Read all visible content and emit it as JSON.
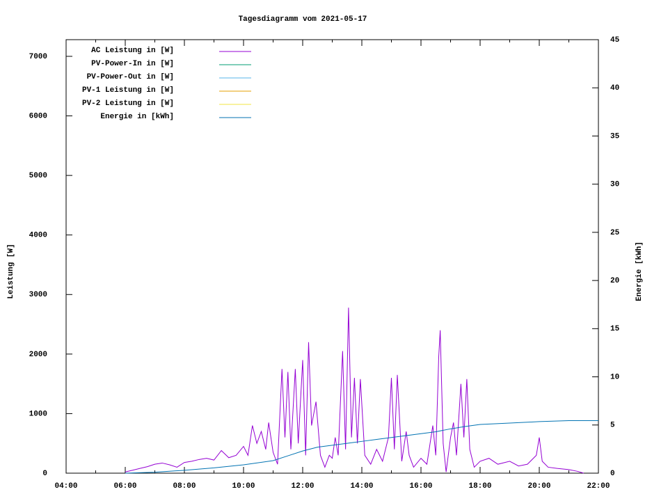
{
  "chart_data": {
    "type": "line",
    "title": "Tagesdiagramm vom 2021-05-17",
    "ylabel": "Leistung [W]",
    "y2label": "Energie [kWh]",
    "xlim": [
      4,
      22
    ],
    "xticks": [
      {
        "value": 4,
        "label": "04:00"
      },
      {
        "value": 6,
        "label": "06:00"
      },
      {
        "value": 8,
        "label": "08:00"
      },
      {
        "value": 10,
        "label": "10:00"
      },
      {
        "value": 12,
        "label": "12:00"
      },
      {
        "value": 14,
        "label": "14:00"
      },
      {
        "value": 16,
        "label": "16:00"
      },
      {
        "value": 18,
        "label": "18:00"
      },
      {
        "value": 20,
        "label": "20:00"
      },
      {
        "value": 22,
        "label": "22:00"
      }
    ],
    "ylim": [
      0,
      7280
    ],
    "yticks": [
      0,
      1000,
      2000,
      3000,
      4000,
      5000,
      6000,
      7000
    ],
    "y2lim": [
      0,
      45
    ],
    "y2ticks": [
      0,
      5,
      10,
      15,
      20,
      25,
      30,
      35,
      40,
      45
    ],
    "legend": "top-left",
    "series": [
      {
        "name": "AC Leistung in [W]",
        "color": "#9400d3",
        "x": [
          6.0,
          6.25,
          6.5,
          6.75,
          7.0,
          7.25,
          7.5,
          7.75,
          8.0,
          8.25,
          8.5,
          8.75,
          9.0,
          9.25,
          9.5,
          9.75,
          10.0,
          10.15,
          10.3,
          10.45,
          10.6,
          10.75,
          10.85,
          11.0,
          11.15,
          11.3,
          11.4,
          11.5,
          11.6,
          11.75,
          11.85,
          12.0,
          12.1,
          12.2,
          12.3,
          12.45,
          12.6,
          12.75,
          12.9,
          13.0,
          13.1,
          13.2,
          13.35,
          13.45,
          13.55,
          13.65,
          13.75,
          13.85,
          13.95,
          14.1,
          14.3,
          14.5,
          14.7,
          14.9,
          15.0,
          15.1,
          15.2,
          15.35,
          15.5,
          15.6,
          15.75,
          16.0,
          16.2,
          16.4,
          16.5,
          16.6,
          16.65,
          16.75,
          16.85,
          17.0,
          17.1,
          17.2,
          17.35,
          17.45,
          17.55,
          17.65,
          17.8,
          18.0,
          18.3,
          18.6,
          19.0,
          19.3,
          19.6,
          19.9,
          20.0,
          20.1,
          20.3,
          20.6,
          21.0,
          21.3,
          21.5
        ],
        "values": [
          20,
          50,
          80,
          110,
          150,
          170,
          140,
          100,
          180,
          200,
          230,
          250,
          220,
          380,
          260,
          300,
          450,
          300,
          800,
          500,
          700,
          400,
          850,
          350,
          150,
          1750,
          600,
          1700,
          400,
          1750,
          500,
          1900,
          300,
          2200,
          800,
          1200,
          300,
          100,
          300,
          250,
          600,
          300,
          2050,
          400,
          2780,
          600,
          1600,
          500,
          1580,
          300,
          150,
          400,
          200,
          600,
          1600,
          400,
          1650,
          200,
          700,
          300,
          100,
          250,
          150,
          800,
          300,
          1950,
          2400,
          500,
          20,
          600,
          850,
          300,
          1500,
          600,
          1580,
          400,
          100,
          200,
          250,
          150,
          200,
          120,
          150,
          300,
          600,
          200,
          100,
          80,
          60,
          30,
          0
        ]
      },
      {
        "name": "PV-Power-In in [W]",
        "color": "#009e73",
        "x": [],
        "values": []
      },
      {
        "name": "PV-Power-Out in [W]",
        "color": "#56b4e9",
        "x": [],
        "values": []
      },
      {
        "name": "PV-1 Leistung in [W]",
        "color": "#e69f00",
        "x": [],
        "values": []
      },
      {
        "name": "PV-2 Leistung in [W]",
        "color": "#f0e442",
        "x": [],
        "values": []
      },
      {
        "name": "Energie in [kWh]",
        "color": "#0072b2",
        "axis": "y2",
        "x": [
          6.0,
          7.0,
          8.0,
          9.0,
          10.0,
          11.0,
          11.5,
          12.0,
          12.5,
          13.0,
          13.5,
          14.0,
          14.5,
          15.0,
          15.5,
          16.0,
          16.5,
          17.0,
          17.5,
          18.0,
          19.0,
          20.0,
          21.0,
          22.0
        ],
        "values": [
          0,
          0.1,
          0.3,
          0.55,
          0.87,
          1.3,
          1.8,
          2.3,
          2.7,
          2.9,
          3.1,
          3.3,
          3.5,
          3.7,
          3.9,
          4.1,
          4.3,
          4.6,
          4.85,
          5.06,
          5.2,
          5.35,
          5.45,
          5.45
        ]
      }
    ]
  }
}
